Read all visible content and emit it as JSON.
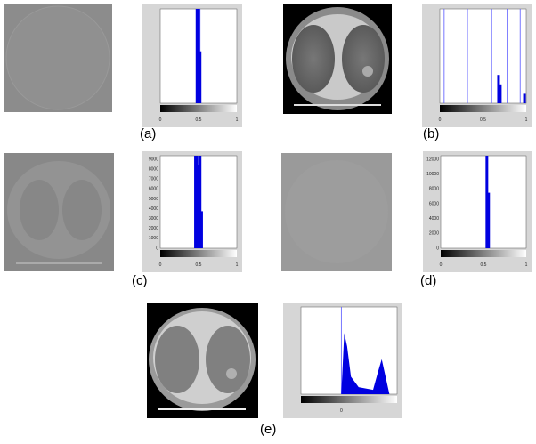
{
  "panels": [
    {
      "label": "(a)",
      "histogram": {
        "xticks": [
          "0",
          "0.5",
          "1"
        ]
      }
    },
    {
      "label": "(b)",
      "histogram": {
        "xticks": [
          "0",
          "0.5",
          "1"
        ]
      }
    },
    {
      "label": "(c)",
      "histogram": {
        "xticks": [
          "0",
          "0.5",
          "1"
        ],
        "yticks": [
          "9000",
          "8000",
          "7000",
          "6000",
          "5000",
          "4000",
          "3000",
          "2000",
          "1000",
          "0"
        ]
      }
    },
    {
      "label": "(d)",
      "histogram": {
        "xticks": [
          "0",
          "0.5",
          "1"
        ],
        "yticks": [
          "12000",
          "10000",
          "8000",
          "6000",
          "4000",
          "2000",
          "0"
        ]
      }
    },
    {
      "label": "(e)",
      "histogram": {
        "xticks": [
          "0"
        ]
      }
    }
  ]
}
